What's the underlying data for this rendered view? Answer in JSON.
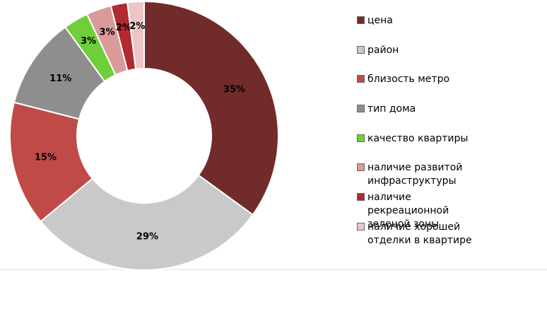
{
  "chart_data": {
    "type": "donut",
    "categories": [
      "цена",
      "район",
      "близость метро",
      "тип дома",
      "качество квартиры",
      "наличие развитой инфраструктуры",
      "наличие рекреационной зеленой зоны",
      "наличие хорошей отделки в квартире"
    ],
    "values": [
      35,
      29,
      15,
      11,
      3,
      3,
      2,
      2
    ],
    "value_labels": [
      "35%",
      "29%",
      "15%",
      "11%",
      "3%",
      "3%",
      "2%",
      "2%"
    ],
    "colors": [
      "#722b2b",
      "#c9c9c9",
      "#bf4a48",
      "#8e8e8e",
      "#6fcf3a",
      "#d99a99",
      "#b02a30",
      "#ecc6c6"
    ],
    "legend": "right"
  }
}
